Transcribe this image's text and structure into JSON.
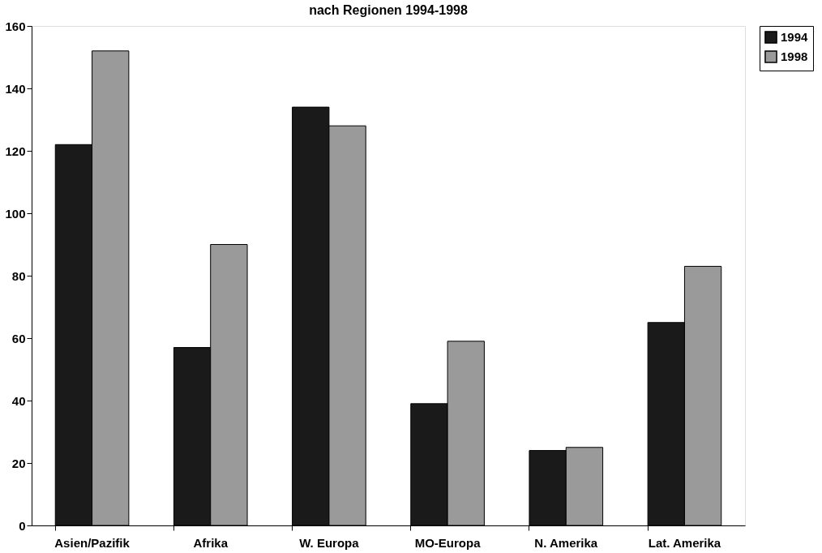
{
  "chart_data": {
    "type": "bar",
    "title": "nach Regionen 1994-1998",
    "categories": [
      "Asien/Pazifik",
      "Afrika",
      "W. Europa",
      "MO-Europa",
      "N. Amerika",
      "Lat. Amerika"
    ],
    "series": [
      {
        "name": "1994",
        "color": "#1a1a1a",
        "values": [
          122,
          57,
          134,
          39,
          24,
          65
        ]
      },
      {
        "name": "1998",
        "color": "#9a9a9a",
        "values": [
          152,
          90,
          128,
          59,
          25,
          83
        ]
      }
    ],
    "ylim": [
      0,
      160
    ],
    "yticks": [
      0,
      20,
      40,
      60,
      80,
      100,
      120,
      140,
      160
    ],
    "grid": false,
    "legend": "right"
  }
}
